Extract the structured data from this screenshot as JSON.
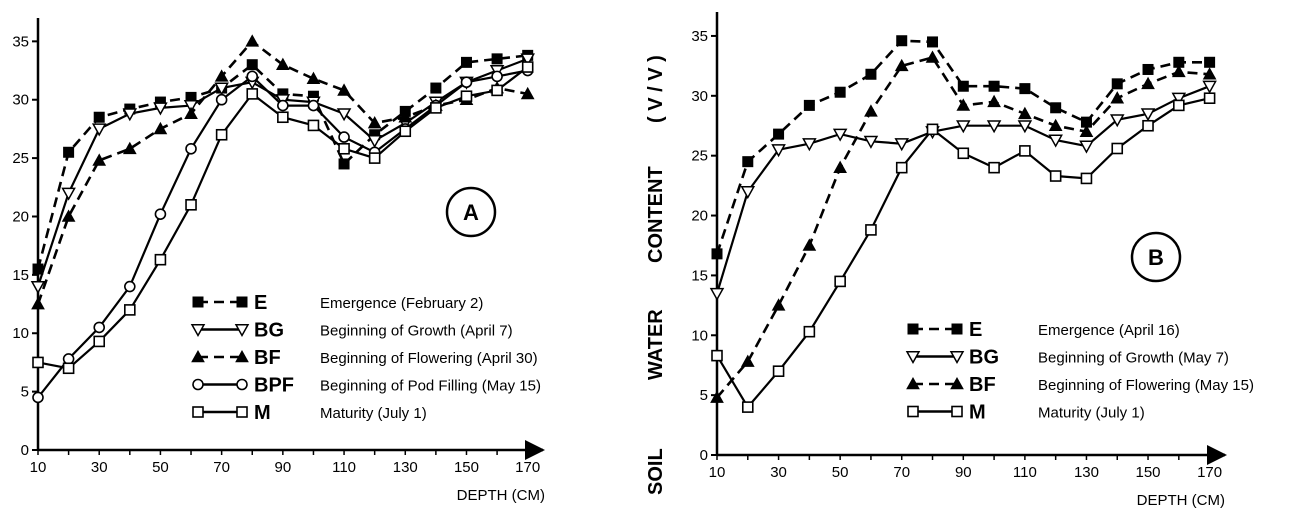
{
  "y_axis_label": [
    "SOIL",
    "WATER",
    "CONTENT",
    "( V / V )"
  ],
  "chart_data": [
    {
      "type": "line",
      "panel_label": "A",
      "xlabel": "DEPTH (CM)",
      "ylabel": "",
      "xlim": [
        10,
        175
      ],
      "ylim": [
        0,
        37
      ],
      "xticks": [
        10,
        30,
        50,
        70,
        90,
        110,
        130,
        150,
        170
      ],
      "yticks": [
        0,
        5,
        10,
        15,
        20,
        25,
        30,
        35
      ],
      "grid": false,
      "legend_position": "bottom-right",
      "series": [
        {
          "name": "E",
          "label": "Emergence (February 2)",
          "marker": "square-filled",
          "dash": "dashed",
          "x": [
            10,
            20,
            30,
            40,
            50,
            60,
            70,
            80,
            90,
            100,
            110,
            120,
            130,
            140,
            150,
            160,
            170
          ],
          "y": [
            15.5,
            25.5,
            28.5,
            29.2,
            29.8,
            30.2,
            31.0,
            33.0,
            30.5,
            30.3,
            24.5,
            27.0,
            29.0,
            31.0,
            33.2,
            33.5,
            33.8
          ]
        },
        {
          "name": "BG",
          "label": "Beginning of Growth (April 7)",
          "marker": "triangle-down-open",
          "dash": "solid",
          "x": [
            10,
            20,
            30,
            40,
            50,
            60,
            70,
            80,
            90,
            100,
            110,
            120,
            130,
            140,
            150,
            160,
            170
          ],
          "y": [
            14.0,
            22.0,
            27.5,
            28.8,
            29.3,
            29.5,
            31.0,
            31.5,
            30.0,
            29.8,
            28.8,
            26.5,
            28.0,
            29.8,
            31.5,
            32.5,
            33.5
          ]
        },
        {
          "name": "BF",
          "label": "Beginning of Flowering (April 30)",
          "marker": "triangle-filled",
          "dash": "dashed",
          "x": [
            10,
            20,
            30,
            40,
            50,
            60,
            70,
            80,
            90,
            100,
            110,
            120,
            130,
            140,
            150,
            160,
            170
          ],
          "y": [
            12.5,
            20.0,
            24.8,
            25.8,
            27.5,
            28.8,
            32.0,
            35.0,
            33.0,
            31.8,
            30.8,
            28.0,
            28.5,
            29.5,
            30.0,
            31.0,
            30.5
          ]
        },
        {
          "name": "BPF",
          "label": "Beginning of Pod Filling (May 15)",
          "marker": "circle-open",
          "dash": "solid",
          "x": [
            10,
            20,
            30,
            40,
            50,
            60,
            70,
            80,
            90,
            100,
            110,
            120,
            130,
            140,
            150,
            160,
            170
          ],
          "y": [
            4.5,
            7.8,
            10.5,
            14.0,
            20.2,
            25.8,
            30.0,
            32.0,
            29.5,
            29.5,
            26.8,
            25.5,
            27.5,
            29.5,
            31.5,
            32.0,
            32.5
          ]
        },
        {
          "name": "M",
          "label": "Maturity (July 1)",
          "marker": "square-open",
          "dash": "solid",
          "x": [
            10,
            20,
            30,
            40,
            50,
            60,
            70,
            80,
            90,
            100,
            110,
            120,
            130,
            140,
            150,
            160,
            170
          ],
          "y": [
            7.5,
            7.0,
            9.3,
            12.0,
            16.3,
            21.0,
            27.0,
            30.5,
            28.5,
            27.8,
            25.8,
            25.0,
            27.3,
            29.3,
            30.3,
            30.8,
            32.8
          ]
        }
      ]
    },
    {
      "type": "line",
      "panel_label": "B",
      "xlabel": "DEPTH (CM)",
      "ylabel": "",
      "xlim": [
        10,
        175
      ],
      "ylim": [
        0,
        37
      ],
      "xticks": [
        10,
        30,
        50,
        70,
        90,
        110,
        130,
        150,
        170
      ],
      "yticks": [
        0,
        5,
        10,
        15,
        20,
        25,
        30,
        35
      ],
      "grid": false,
      "legend_position": "bottom-right",
      "series": [
        {
          "name": "E",
          "label": "Emergence (April 16)",
          "marker": "square-filled",
          "dash": "dashed",
          "x": [
            10,
            20,
            30,
            40,
            50,
            60,
            70,
            80,
            90,
            100,
            110,
            120,
            130,
            140,
            150,
            160,
            170
          ],
          "y": [
            16.8,
            24.5,
            26.8,
            29.2,
            30.3,
            31.8,
            34.6,
            34.5,
            30.8,
            30.8,
            30.6,
            29.0,
            27.8,
            31.0,
            32.2,
            32.8,
            32.8
          ]
        },
        {
          "name": "BG",
          "label": "Beginning of Growth (May 7)",
          "marker": "triangle-down-open",
          "dash": "solid",
          "x": [
            10,
            20,
            30,
            40,
            50,
            60,
            70,
            80,
            90,
            100,
            110,
            120,
            130,
            140,
            150,
            160,
            170
          ],
          "y": [
            13.5,
            22.0,
            25.5,
            26.0,
            26.8,
            26.2,
            26.0,
            27.0,
            27.5,
            27.5,
            27.5,
            26.3,
            25.8,
            28.0,
            28.5,
            29.8,
            30.8
          ]
        },
        {
          "name": "BF",
          "label": "Beginning of Flowering (May 15)",
          "marker": "triangle-filled",
          "dash": "dashed",
          "x": [
            10,
            20,
            30,
            40,
            50,
            60,
            70,
            80,
            90,
            100,
            110,
            120,
            130,
            140,
            150,
            160,
            170
          ],
          "y": [
            4.8,
            7.8,
            12.5,
            17.5,
            24.0,
            28.7,
            32.5,
            33.2,
            29.2,
            29.5,
            28.5,
            27.5,
            27.0,
            29.8,
            31.0,
            32.0,
            31.8
          ]
        },
        {
          "name": "M",
          "label": "Maturity (July 1)",
          "marker": "square-open",
          "dash": "solid",
          "x": [
            10,
            20,
            30,
            40,
            50,
            60,
            70,
            80,
            90,
            100,
            110,
            120,
            130,
            140,
            150,
            160,
            170
          ],
          "y": [
            8.3,
            4.0,
            7.0,
            10.3,
            14.5,
            18.8,
            24.0,
            27.2,
            25.2,
            24.0,
            25.4,
            23.3,
            23.1,
            25.6,
            27.5,
            29.2,
            29.8
          ]
        }
      ]
    }
  ]
}
